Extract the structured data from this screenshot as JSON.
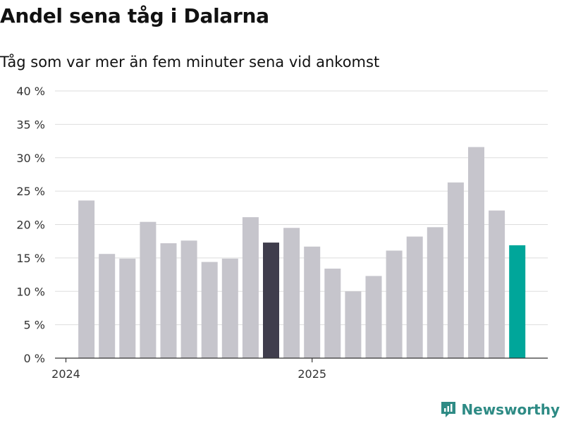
{
  "title": "Andel sena tåg i Dalarna",
  "subtitle": "Tåg som var mer än fem minuter sena vid ankomst",
  "brand": {
    "name": "Newsworthy",
    "icon": "newsworthy-logo-icon",
    "color": "#2e8b85"
  },
  "colors": {
    "default_bar": "#c6c5cc",
    "highlight_bar": "#3f3d4c",
    "latest_bar": "#00a69a",
    "grid": "#dddddd",
    "axis": "#333333"
  },
  "chart_data": {
    "type": "bar",
    "title": "Andel sena tåg i Dalarna",
    "subtitle": "Tåg som var mer än fem minuter sena vid ankomst",
    "xlabel": "",
    "ylabel": "",
    "ylim": [
      0,
      40
    ],
    "yticks": [
      0,
      5,
      10,
      15,
      20,
      25,
      30,
      35,
      40
    ],
    "ytick_labels": [
      "0 %",
      "5 %",
      "10 %",
      "15 %",
      "20 %",
      "25 %",
      "30 %",
      "35 %",
      "40 %"
    ],
    "x_period_labels": [
      {
        "label": "2024",
        "at_index": 0
      },
      {
        "label": "2025",
        "at_index": 12
      }
    ],
    "categories": [
      "2024-01",
      "2024-02",
      "2024-03",
      "2024-04",
      "2024-05",
      "2024-06",
      "2024-07",
      "2024-08",
      "2024-09",
      "2024-10",
      "2024-11",
      "2024-12",
      "2025-01",
      "2025-02",
      "2025-03",
      "2025-04",
      "2025-05",
      "2025-06",
      "2025-07",
      "2025-08",
      "2025-09",
      "2025-10",
      "2025-11",
      "2025-12"
    ],
    "values": [
      null,
      23.6,
      15.6,
      14.9,
      20.4,
      17.2,
      17.6,
      14.4,
      14.9,
      21.1,
      17.3,
      19.5,
      16.7,
      13.4,
      10.0,
      12.3,
      16.1,
      18.2,
      19.6,
      26.3,
      31.6,
      22.1,
      16.9,
      null
    ],
    "highlight_index": 10,
    "latest_index": 22,
    "grid": true
  }
}
